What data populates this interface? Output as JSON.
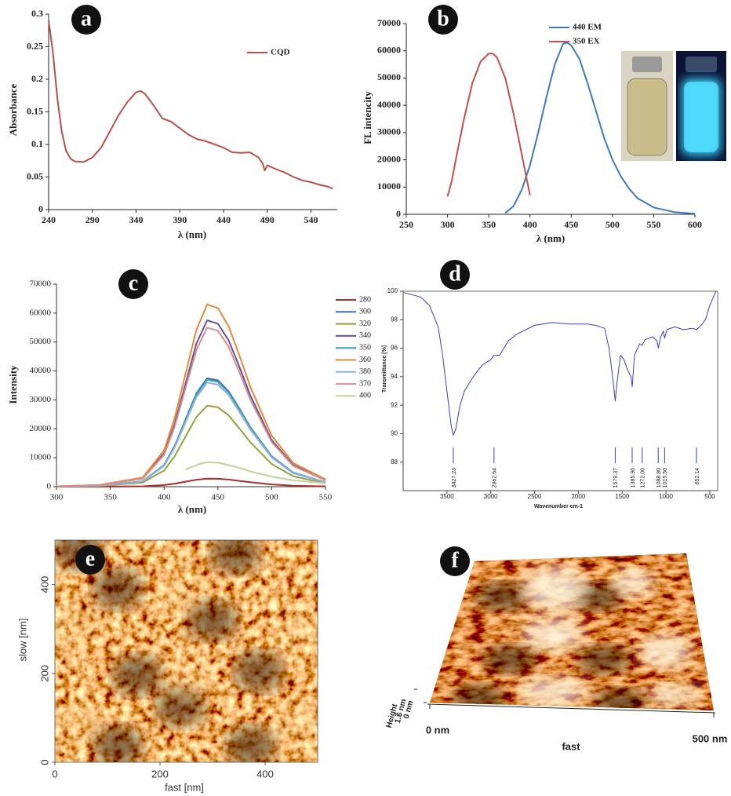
{
  "chart_data": [
    {
      "type": "line",
      "label": "a",
      "xlabel": "λ (nm)",
      "ylabel": "Absorbance",
      "xlim": [
        240,
        570
      ],
      "xticks": [
        240,
        290,
        340,
        390,
        440,
        490,
        540
      ],
      "ylim": [
        0,
        0.3
      ],
      "yticks": [
        0,
        0.05,
        0.1,
        0.15,
        0.2,
        0.25,
        0.3
      ],
      "x": [
        240,
        245,
        250,
        255,
        260,
        265,
        270,
        280,
        290,
        300,
        310,
        320,
        330,
        340,
        345,
        350,
        360,
        370,
        380,
        390,
        400,
        410,
        420,
        430,
        440,
        450,
        460,
        470,
        480,
        485,
        487,
        490,
        500,
        510,
        520,
        530,
        540,
        550,
        560,
        565
      ],
      "series": [
        {
          "name": "CQD",
          "color": "#b5504b",
          "values": [
            0.29,
            0.24,
            0.17,
            0.12,
            0.09,
            0.078,
            0.074,
            0.073,
            0.08,
            0.095,
            0.12,
            0.145,
            0.165,
            0.18,
            0.182,
            0.178,
            0.16,
            0.14,
            0.135,
            0.125,
            0.115,
            0.108,
            0.105,
            0.1,
            0.095,
            0.088,
            0.087,
            0.088,
            0.08,
            0.07,
            0.06,
            0.068,
            0.062,
            0.057,
            0.05,
            0.045,
            0.042,
            0.038,
            0.035,
            0.032
          ]
        }
      ]
    },
    {
      "type": "line",
      "label": "b",
      "xlabel": "λ (nm)",
      "ylabel": "FL intencity",
      "xlim": [
        250,
        600
      ],
      "xticks": [
        250,
        300,
        350,
        400,
        450,
        500,
        550,
        600
      ],
      "ylim": [
        0,
        70000
      ],
      "yticks": [
        0,
        10000,
        20000,
        30000,
        40000,
        50000,
        60000,
        70000
      ],
      "series": [
        {
          "name": "440 EM",
          "color": "#3f7ab8",
          "x": [
            370,
            380,
            390,
            400,
            410,
            420,
            430,
            440,
            445,
            450,
            460,
            470,
            480,
            490,
            500,
            510,
            520,
            530,
            550,
            575,
            600
          ],
          "values": [
            500,
            3000,
            9000,
            18000,
            30000,
            43000,
            55000,
            62500,
            63000,
            62000,
            57000,
            48000,
            38000,
            28000,
            20000,
            14000,
            9500,
            6000,
            2500,
            800,
            200
          ]
        },
        {
          "name": "350  EX",
          "color": "#c0504d",
          "x": [
            300,
            305,
            310,
            320,
            330,
            340,
            350,
            355,
            360,
            370,
            380,
            390,
            400
          ],
          "values": [
            6500,
            12000,
            20000,
            35000,
            48000,
            56000,
            59000,
            59000,
            57500,
            50000,
            37000,
            22000,
            7000
          ]
        }
      ]
    },
    {
      "type": "line",
      "label": "c",
      "xlabel": "λ (nm)",
      "ylabel": "Intensity",
      "xlim": [
        300,
        550
      ],
      "xticks": [
        300,
        350,
        400,
        450,
        500,
        550
      ],
      "ylim": [
        0,
        70000
      ],
      "yticks": [
        0,
        10000,
        20000,
        30000,
        40000,
        50000,
        60000,
        70000
      ],
      "x": [
        300,
        340,
        380,
        400,
        410,
        420,
        430,
        440,
        450,
        460,
        470,
        480,
        500,
        520,
        550
      ],
      "series": [
        {
          "name": "280",
          "color": "#a5302c",
          "values": [
            6,
            28,
            140,
            560,
            1064,
            1736,
            2408,
            2800,
            2744,
            2464,
            2016,
            1540,
            784,
            364,
            112
          ]
        },
        {
          "name": "300",
          "color": "#3d6fb0",
          "values": [
            75,
            375,
            1875,
            7500,
            14250,
            23250,
            32250,
            37500,
            36750,
            33000,
            27000,
            20625,
            10500,
            4875,
            1500
          ]
        },
        {
          "name": "320",
          "color": "#8ea33c",
          "values": [
            56,
            280,
            1400,
            5600,
            10640,
            17360,
            24080,
            28000,
            27440,
            24640,
            20160,
            15400,
            7840,
            3640,
            1120
          ]
        },
        {
          "name": "340",
          "color": "#6a4f96",
          "values": [
            115,
            575,
            2875,
            11500,
            21850,
            35650,
            49450,
            57500,
            56350,
            50600,
            41400,
            31625,
            16100,
            7475,
            2300
          ]
        },
        {
          "name": "350",
          "color": "#3aa0b8",
          "values": [
            74,
            370,
            1850,
            7400,
            14060,
            22940,
            31820,
            37000,
            36260,
            32560,
            26640,
            20350,
            10360,
            4810,
            1480
          ]
        },
        {
          "name": "360",
          "color": "#e4883a",
          "values": [
            126,
            630,
            3150,
            12600,
            23940,
            39060,
            54180,
            63000,
            61740,
            55440,
            45360,
            34650,
            17640,
            8190,
            2520
          ]
        },
        {
          "name": "380",
          "color": "#8fb0dc",
          "values": [
            72,
            360,
            1800,
            7200,
            13680,
            22320,
            30960,
            36000,
            35280,
            31680,
            25920,
            19800,
            10080,
            4680,
            1440
          ]
        },
        {
          "name": "370",
          "color": "#d58f8d",
          "values": [
            110,
            550,
            2750,
            11000,
            20900,
            34100,
            47300,
            55000,
            53900,
            48400,
            39600,
            30250,
            15400,
            7150,
            2200
          ]
        },
        {
          "name": "400",
          "color": "#c3d39b",
          "values": [
            null,
            null,
            null,
            null,
            null,
            6000,
            7500,
            8500,
            8300,
            7500,
            6500,
            5300,
            3500,
            2200,
            1200
          ]
        }
      ]
    },
    {
      "type": "line",
      "label": "d",
      "xlabel": "Wavenumber cm-1",
      "ylabel": "Transmittance [%]",
      "xlim": [
        4000,
        410
      ],
      "xticks": [
        3500,
        3000,
        2500,
        2000,
        1500,
        1000,
        500
      ],
      "ylim": [
        86,
        100
      ],
      "yticks": [
        88,
        90,
        92,
        94,
        96,
        98,
        100
      ],
      "x": [
        3990,
        3800,
        3700,
        3600,
        3550,
        3500,
        3450,
        3427,
        3400,
        3350,
        3300,
        3200,
        3100,
        3000,
        2962,
        2900,
        2800,
        2700,
        2500,
        2300,
        2100,
        1900,
        1800,
        1700,
        1650,
        1600,
        1579,
        1560,
        1520,
        1480,
        1440,
        1400,
        1385,
        1360,
        1300,
        1272,
        1240,
        1150,
        1100,
        1088,
        1060,
        1030,
        1015,
        990,
        900,
        800,
        700,
        652,
        600,
        550,
        500,
        430
      ],
      "series": [
        {
          "color": "#3b3fb0",
          "values": [
            99.9,
            99.6,
            99,
            97.5,
            95.5,
            93,
            90.5,
            89.9,
            90.3,
            92,
            93,
            94,
            94.8,
            95.2,
            95.5,
            95.5,
            96.5,
            97,
            97.6,
            97.8,
            97.7,
            97.7,
            97.6,
            97.4,
            96,
            93.5,
            92.3,
            93.5,
            95.5,
            95.2,
            94.5,
            94,
            93.3,
            95.5,
            96.3,
            96.2,
            96.6,
            96.8,
            96.5,
            96,
            96.8,
            97.2,
            96.7,
            97.3,
            97.5,
            97.3,
            97.4,
            97.3,
            97.6,
            98,
            99,
            100
          ]
        }
      ],
      "peaks": [
        3427.23,
        2962.64,
        1579.37,
        1385.96,
        {
          "value": 1272,
          "label": "1272.00"
        },
        {
          "value": 1088.8,
          "label": "1088.80"
        },
        {
          "value": 1015.5,
          "label": "1015.50"
        },
        652.14
      ]
    },
    {
      "type": "image",
      "label": "e",
      "xlabel": "fast [nm]",
      "ylabel": "slow [nm]",
      "xlim": [
        0,
        500
      ],
      "xticks": [
        0,
        200,
        400
      ],
      "ylim": [
        0,
        500
      ],
      "yticks": [
        0,
        200,
        400
      ]
    },
    {
      "type": "surface",
      "label": "f",
      "xlabel": "fast",
      "zlabel": "Height",
      "xticks": [
        {
          "value": 0,
          "label": "0 nm"
        },
        {
          "value": 500,
          "label": "500 nm"
        }
      ],
      "xlim": [
        0,
        500
      ],
      "zticks": [
        {
          "value": 1.6,
          "label": "1.6 nm"
        },
        {
          "value": 0,
          "label": "0 nm"
        }
      ]
    }
  ]
}
